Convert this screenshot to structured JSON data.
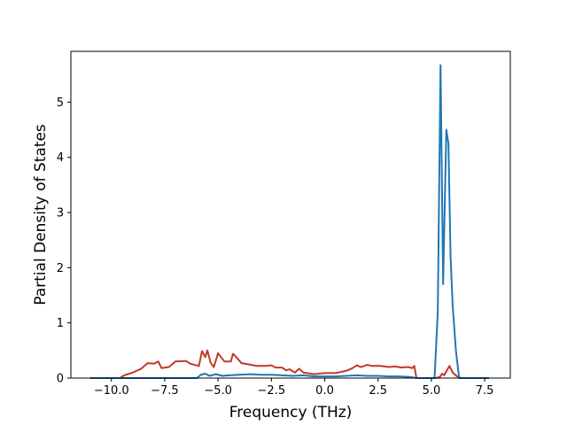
{
  "chart_data": {
    "type": "line",
    "title": "",
    "xlabel": "Frequency (THz)",
    "ylabel": "Partial Density of States",
    "xlim": [
      -11.9,
      8.7
    ],
    "ylim": [
      0,
      5.92
    ],
    "xticks": [
      -10.0,
      -7.5,
      -5.0,
      -2.5,
      0.0,
      2.5,
      5.0,
      7.5
    ],
    "xtick_labels": [
      "−10.0",
      "−7.5",
      "−5.0",
      "−2.5",
      "0.0",
      "2.5",
      "5.0",
      "7.5"
    ],
    "yticks": [
      0,
      1,
      2,
      3,
      4,
      5
    ],
    "ytick_labels": [
      "0",
      "1",
      "2",
      "3",
      "4",
      "5"
    ],
    "grid": false,
    "legend": "none",
    "series": [
      {
        "color": "#c0392b",
        "points": [
          [
            -11.0,
            0.0
          ],
          [
            -9.6,
            0.0
          ],
          [
            -9.4,
            0.05
          ],
          [
            -9.0,
            0.1
          ],
          [
            -8.6,
            0.17
          ],
          [
            -8.3,
            0.27
          ],
          [
            -8.0,
            0.26
          ],
          [
            -7.8,
            0.3
          ],
          [
            -7.65,
            0.18
          ],
          [
            -7.3,
            0.2
          ],
          [
            -7.0,
            0.3
          ],
          [
            -6.5,
            0.31
          ],
          [
            -6.3,
            0.26
          ],
          [
            -5.9,
            0.22
          ],
          [
            -5.75,
            0.49
          ],
          [
            -5.6,
            0.38
          ],
          [
            -5.5,
            0.5
          ],
          [
            -5.35,
            0.28
          ],
          [
            -5.2,
            0.2
          ],
          [
            -5.0,
            0.45
          ],
          [
            -4.7,
            0.3
          ],
          [
            -4.4,
            0.3
          ],
          [
            -4.3,
            0.44
          ],
          [
            -4.15,
            0.38
          ],
          [
            -3.9,
            0.27
          ],
          [
            -3.6,
            0.25
          ],
          [
            -3.2,
            0.22
          ],
          [
            -2.8,
            0.22
          ],
          [
            -2.5,
            0.23
          ],
          [
            -2.3,
            0.19
          ],
          [
            -2.0,
            0.19
          ],
          [
            -1.8,
            0.14
          ],
          [
            -1.65,
            0.16
          ],
          [
            -1.4,
            0.1
          ],
          [
            -1.2,
            0.17
          ],
          [
            -1.0,
            0.1
          ],
          [
            -0.5,
            0.07
          ],
          [
            0.0,
            0.09
          ],
          [
            0.5,
            0.09
          ],
          [
            1.0,
            0.13
          ],
          [
            1.3,
            0.18
          ],
          [
            1.5,
            0.23
          ],
          [
            1.7,
            0.2
          ],
          [
            2.0,
            0.24
          ],
          [
            2.2,
            0.22
          ],
          [
            2.6,
            0.22
          ],
          [
            3.0,
            0.2
          ],
          [
            3.3,
            0.21
          ],
          [
            3.6,
            0.19
          ],
          [
            3.9,
            0.2
          ],
          [
            4.1,
            0.18
          ],
          [
            4.2,
            0.22
          ],
          [
            4.3,
            0.0
          ],
          [
            5.2,
            0.0
          ],
          [
            5.4,
            0.02
          ],
          [
            5.5,
            0.08
          ],
          [
            5.6,
            0.05
          ],
          [
            5.7,
            0.12
          ],
          [
            5.85,
            0.22
          ],
          [
            6.0,
            0.1
          ],
          [
            6.2,
            0.03
          ],
          [
            6.4,
            0.0
          ],
          [
            7.7,
            0.0
          ]
        ]
      },
      {
        "color": "#1f77b4",
        "points": [
          [
            -11.0,
            0.0
          ],
          [
            -6.0,
            0.0
          ],
          [
            -5.8,
            0.06
          ],
          [
            -5.6,
            0.08
          ],
          [
            -5.4,
            0.04
          ],
          [
            -5.1,
            0.07
          ],
          [
            -4.8,
            0.04
          ],
          [
            -4.5,
            0.05
          ],
          [
            -4.0,
            0.06
          ],
          [
            -3.5,
            0.07
          ],
          [
            -3.0,
            0.06
          ],
          [
            -2.5,
            0.06
          ],
          [
            -2.0,
            0.05
          ],
          [
            -1.5,
            0.04
          ],
          [
            -1.0,
            0.05
          ],
          [
            -0.5,
            0.03
          ],
          [
            0.0,
            0.03
          ],
          [
            0.5,
            0.03
          ],
          [
            1.0,
            0.04
          ],
          [
            1.5,
            0.05
          ],
          [
            2.0,
            0.04
          ],
          [
            2.5,
            0.04
          ],
          [
            3.0,
            0.03
          ],
          [
            3.5,
            0.03
          ],
          [
            4.0,
            0.02
          ],
          [
            4.3,
            0.0
          ],
          [
            5.15,
            0.0
          ],
          [
            5.3,
            1.2
          ],
          [
            5.43,
            5.67
          ],
          [
            5.55,
            1.7
          ],
          [
            5.7,
            4.5
          ],
          [
            5.8,
            4.25
          ],
          [
            5.9,
            2.2
          ],
          [
            6.0,
            1.3
          ],
          [
            6.15,
            0.5
          ],
          [
            6.3,
            0.0
          ],
          [
            7.7,
            0.0
          ]
        ]
      }
    ]
  }
}
